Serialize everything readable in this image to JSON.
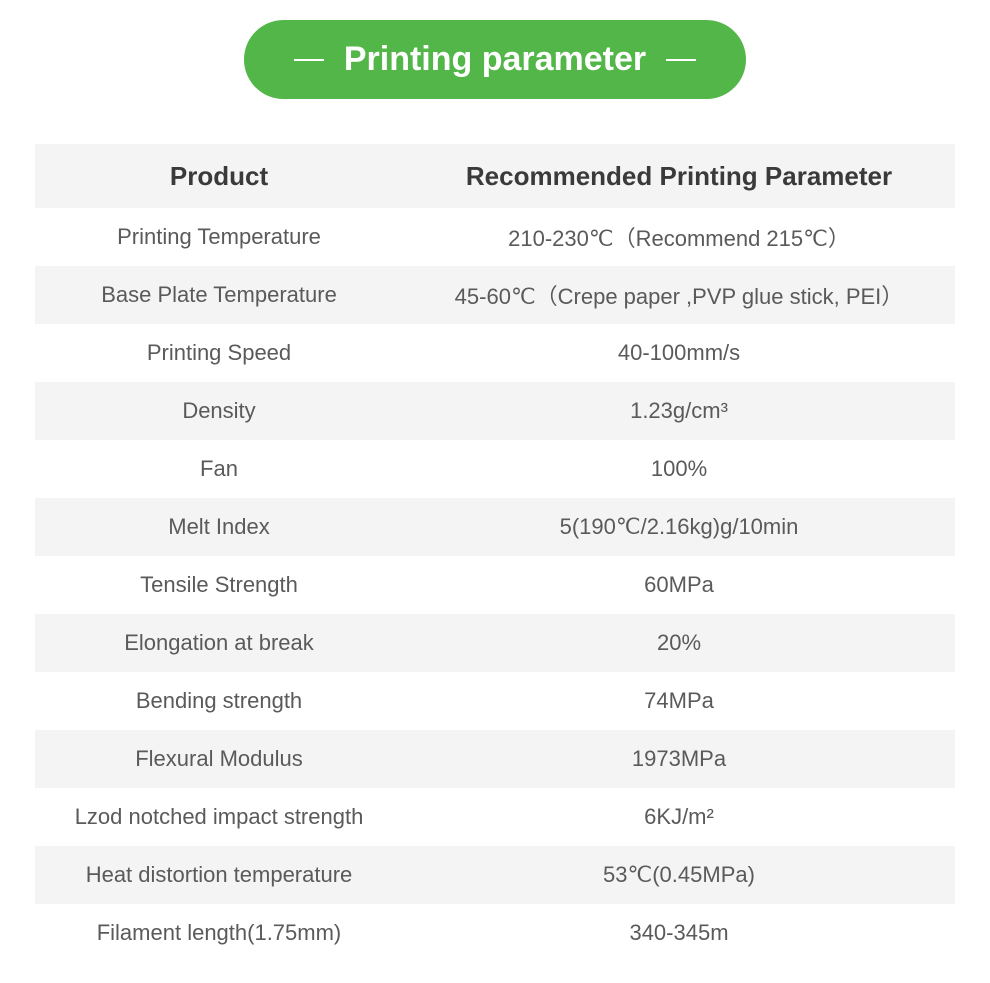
{
  "title": "Printing parameter",
  "table": {
    "type": "table",
    "background_color": "#ffffff",
    "alt_row_color": "#f4f4f4",
    "text_color": "#5a5a5a",
    "header_text_color": "#3a3a3a",
    "pill_color": "#52b648",
    "pill_text_color": "#ffffff",
    "header_fontsize": 26,
    "body_fontsize": 22,
    "title_fontsize": 34,
    "columns": [
      {
        "label": "Product",
        "width_pct": 40,
        "align": "center"
      },
      {
        "label": "Recommended Printing Parameter",
        "width_pct": 60,
        "align": "center"
      }
    ],
    "rows": [
      {
        "product": "Printing Temperature",
        "value": "210-230℃（Recommend 215℃）"
      },
      {
        "product": "Base Plate Temperature",
        "value": "45-60℃（Crepe paper ,PVP glue stick, PEI）"
      },
      {
        "product": "Printing Speed",
        "value": "40-100mm/s"
      },
      {
        "product": "Density",
        "value": "1.23g/cm³"
      },
      {
        "product": "Fan",
        "value": "100%"
      },
      {
        "product": "Melt Index",
        "value": "5(190℃/2.16kg)g/10min"
      },
      {
        "product": "Tensile Strength",
        "value": "60MPa"
      },
      {
        "product": "Elongation at break",
        "value": "20%"
      },
      {
        "product": "Bending strength",
        "value": "74MPa"
      },
      {
        "product": "Flexural Modulus",
        "value": "1973MPa"
      },
      {
        "product": "Lzod notched impact strength",
        "value": "6KJ/m²"
      },
      {
        "product": "Heat distortion temperature",
        "value": "53℃(0.45MPa)"
      },
      {
        "product": "Filament length(1.75mm)",
        "value": "340-345m"
      }
    ]
  }
}
